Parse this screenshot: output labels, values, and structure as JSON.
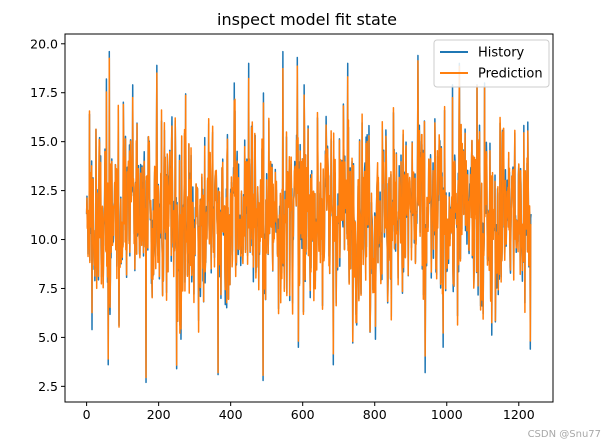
{
  "chart_data": {
    "type": "line",
    "title": "inspect model fit state",
    "xlabel": "",
    "ylabel": "",
    "xlim": [
      -60,
      1295
    ],
    "ylim": [
      1.7,
      20.5
    ],
    "x_ticks": [
      0,
      200,
      400,
      600,
      800,
      1000,
      1200
    ],
    "y_ticks": [
      2.5,
      5.0,
      7.5,
      10.0,
      12.5,
      15.0,
      17.5,
      20.0
    ],
    "x_tick_labels": [
      "0",
      "200",
      "400",
      "600",
      "800",
      "1000",
      "1200"
    ],
    "y_tick_labels": [
      "2.5",
      "5.0",
      "7.5",
      "10.0",
      "12.5",
      "15.0",
      "17.5",
      "20.0"
    ],
    "grid": false,
    "legend_position": "top-right",
    "n_points": 1235,
    "value_range": [
      2.7,
      19.7
    ],
    "series": [
      {
        "name": "History",
        "color": "#1f77b4"
      },
      {
        "name": "Prediction",
        "color": "#ff7f0e"
      }
    ],
    "notable_points": [
      {
        "x": 3,
        "y": 11.3
      },
      {
        "x": 8,
        "y": 16.4
      },
      {
        "x": 15,
        "y": 5.4
      },
      {
        "x": 55,
        "y": 18.2
      },
      {
        "x": 60,
        "y": 3.6
      },
      {
        "x": 63,
        "y": 19.6
      },
      {
        "x": 165,
        "y": 2.7
      },
      {
        "x": 195,
        "y": 18.9
      },
      {
        "x": 250,
        "y": 3.4
      },
      {
        "x": 365,
        "y": 3.1
      },
      {
        "x": 410,
        "y": 18.0
      },
      {
        "x": 450,
        "y": 19.0
      },
      {
        "x": 490,
        "y": 2.8
      },
      {
        "x": 545,
        "y": 19.6
      },
      {
        "x": 585,
        "y": 19.3
      },
      {
        "x": 685,
        "y": 3.6
      },
      {
        "x": 725,
        "y": 19.0
      },
      {
        "x": 920,
        "y": 19.4
      },
      {
        "x": 940,
        "y": 3.2
      },
      {
        "x": 1035,
        "y": 19.0
      },
      {
        "x": 1105,
        "y": 18.0
      },
      {
        "x": 1225,
        "y": 16.0
      },
      {
        "x": 1232,
        "y": 4.4
      },
      {
        "x": 1235,
        "y": 11.3
      }
    ]
  },
  "watermark": "CSDN @Snu77"
}
